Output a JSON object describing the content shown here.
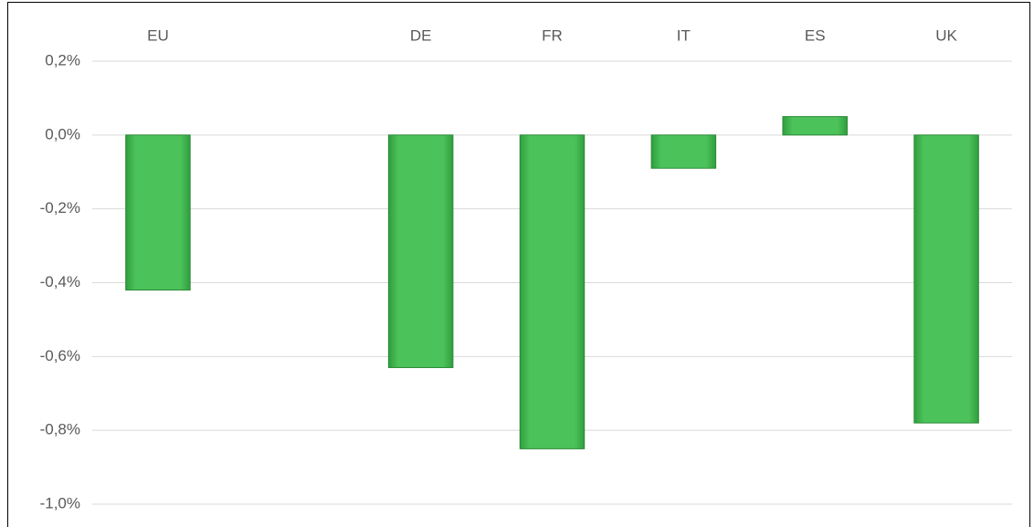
{
  "chart_data": {
    "type": "bar",
    "categories": [
      "EU",
      null,
      "DE",
      "FR",
      "IT",
      "ES",
      "UK"
    ],
    "values": [
      -0.42,
      null,
      -0.63,
      -0.85,
      -0.09,
      0.05,
      -0.78
    ],
    "color": "#4cc25a",
    "ylim": [
      -1.0,
      0.2
    ],
    "yticks": [
      {
        "value": 0.2,
        "label": "0,2%"
      },
      {
        "value": 0,
        "label": "0,0%"
      },
      {
        "value": -0.2,
        "label": "-0,2%"
      },
      {
        "value": -0.4,
        "label": "-0,4%"
      },
      {
        "value": -0.6,
        "label": "-0,6%"
      },
      {
        "value": -0.8,
        "label": "-0,8%"
      },
      {
        "value": -1.0,
        "label": "-1,0%"
      }
    ],
    "grid": true
  }
}
